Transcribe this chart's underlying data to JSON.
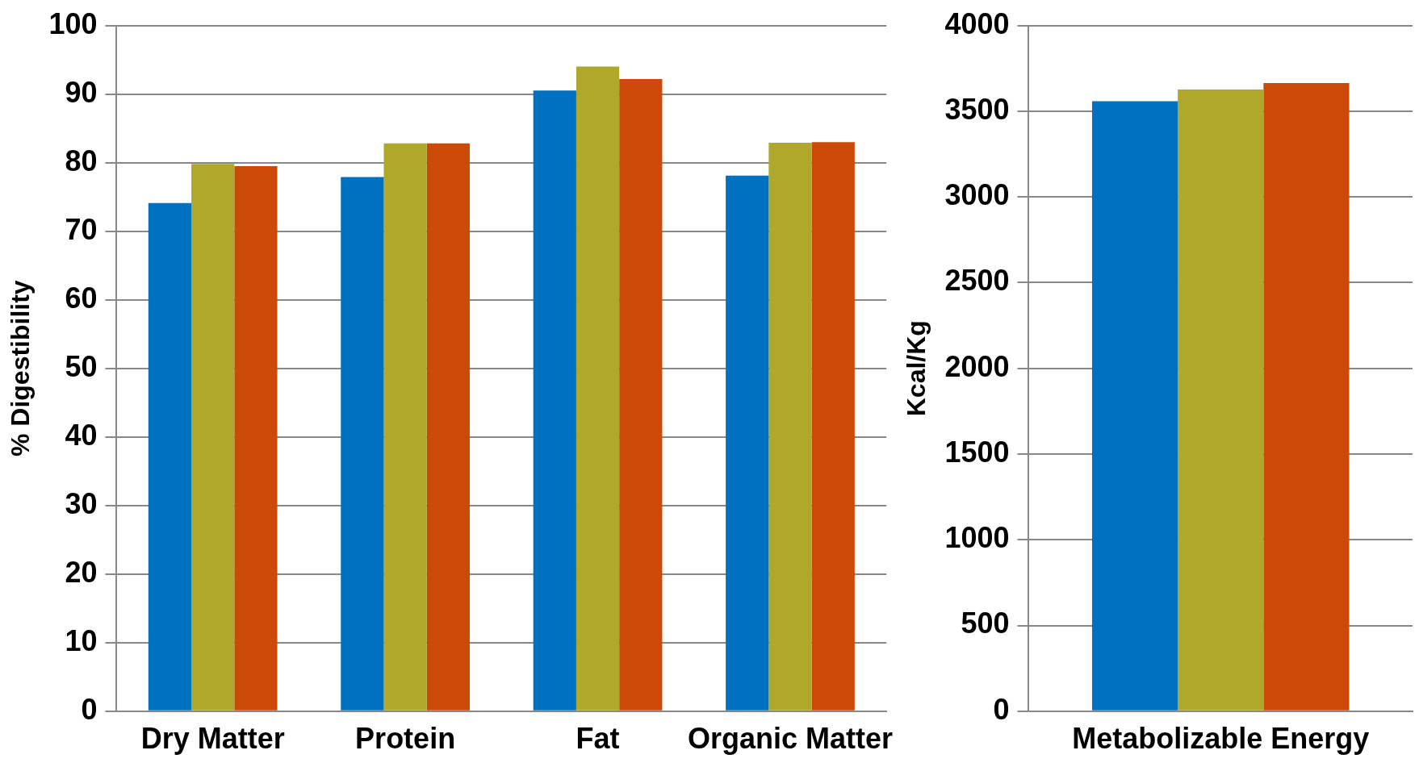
{
  "chart_data": [
    {
      "type": "bar",
      "ylabel": "% Digestibility",
      "categories": [
        "Dry Matter",
        "Protein",
        "Fat",
        "Organic Matter"
      ],
      "series": [
        {
          "color": "#0070c0",
          "values": [
            74.1,
            77.9,
            90.5,
            78.1
          ]
        },
        {
          "color": "#b0a82a",
          "values": [
            79.8,
            82.8,
            94.0,
            82.9
          ]
        },
        {
          "color": "#cc4a08",
          "values": [
            79.5,
            82.8,
            92.2,
            83.0
          ]
        }
      ],
      "ylim": [
        0,
        100
      ],
      "yticks": [
        0,
        10,
        20,
        30,
        40,
        50,
        60,
        70,
        80,
        90,
        100
      ],
      "grid": "y",
      "legend": false
    },
    {
      "type": "bar",
      "ylabel": "Kcal/Kg",
      "categories": [
        "Metabolizable Energy"
      ],
      "series": [
        {
          "color": "#0070c0",
          "values": [
            3558
          ]
        },
        {
          "color": "#b0a82a",
          "values": [
            3627
          ]
        },
        {
          "color": "#cc4a08",
          "values": [
            3664
          ]
        }
      ],
      "ylim": [
        0,
        4000
      ],
      "yticks": [
        0,
        500,
        1000,
        1500,
        2000,
        2500,
        3000,
        3500,
        4000
      ],
      "grid": "y",
      "legend": false
    }
  ]
}
